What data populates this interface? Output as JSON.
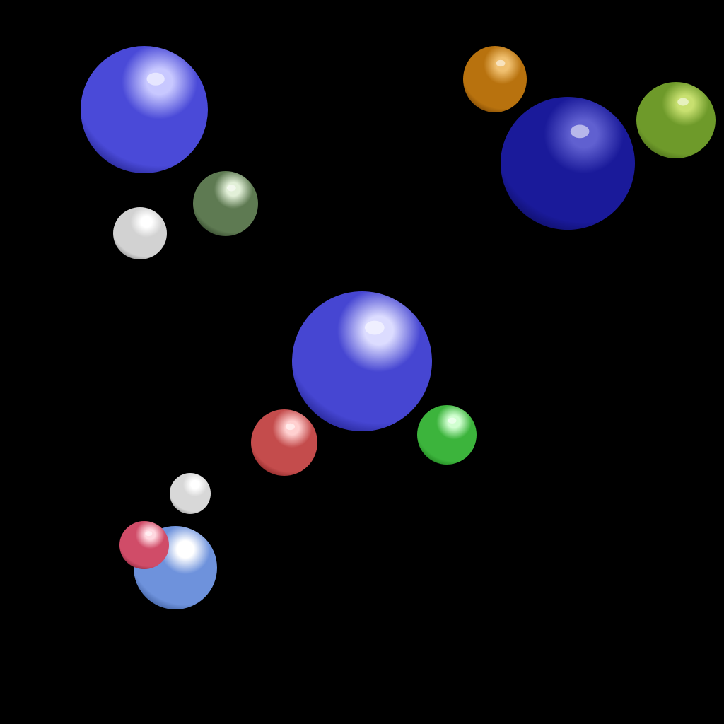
{
  "scene": {
    "background": "#000000",
    "spheres": [
      {
        "name": "sphere-blue-large-top-left",
        "material": "blue",
        "color": "#4a4ad8",
        "highlight": "#c8c8ff",
        "shadow": "#12126a"
      },
      {
        "name": "sphere-green-dark",
        "material": "dark-green",
        "color": "#5e7a52",
        "highlight": "#e2f0d8",
        "shadow": "#1c2a16"
      },
      {
        "name": "sphere-white-top",
        "material": "white",
        "color": "#d2d2d2",
        "highlight": "#ffffff",
        "shadow": "#6e6e6e"
      },
      {
        "name": "sphere-orange",
        "material": "orange",
        "color": "#b8720e",
        "highlight": "#f0c070",
        "shadow": "#5a3000"
      },
      {
        "name": "sphere-navy-large",
        "material": "navy",
        "color": "#1a1a9a",
        "highlight": "#6060d0",
        "shadow": "#08084a"
      },
      {
        "name": "sphere-olive-green",
        "material": "olive",
        "color": "#6e9a2a",
        "highlight": "#c8e070",
        "shadow": "#3a5812"
      },
      {
        "name": "sphere-blue-center",
        "material": "blue",
        "color": "#4646d2",
        "highlight": "#dcdcff",
        "shadow": "#10106a"
      },
      {
        "name": "sphere-red",
        "material": "red",
        "color": "#c44c4c",
        "highlight": "#ffd0d0",
        "shadow": "#6a1212"
      },
      {
        "name": "sphere-green-bright",
        "material": "green",
        "color": "#3cb43c",
        "highlight": "#d0ffd0",
        "shadow": "#126a12"
      },
      {
        "name": "sphere-white-small",
        "material": "white",
        "color": "#d8d8d8",
        "highlight": "#ffffff",
        "shadow": "#787878"
      },
      {
        "name": "sphere-light-blue",
        "material": "light-blue",
        "color": "#6e92dc",
        "highlight": "#ffffff",
        "shadow": "#24407a"
      },
      {
        "name": "sphere-pink-red",
        "material": "pink-red",
        "color": "#d04c68",
        "highlight": "#ffd8e0",
        "shadow": "#6a1226"
      }
    ]
  }
}
